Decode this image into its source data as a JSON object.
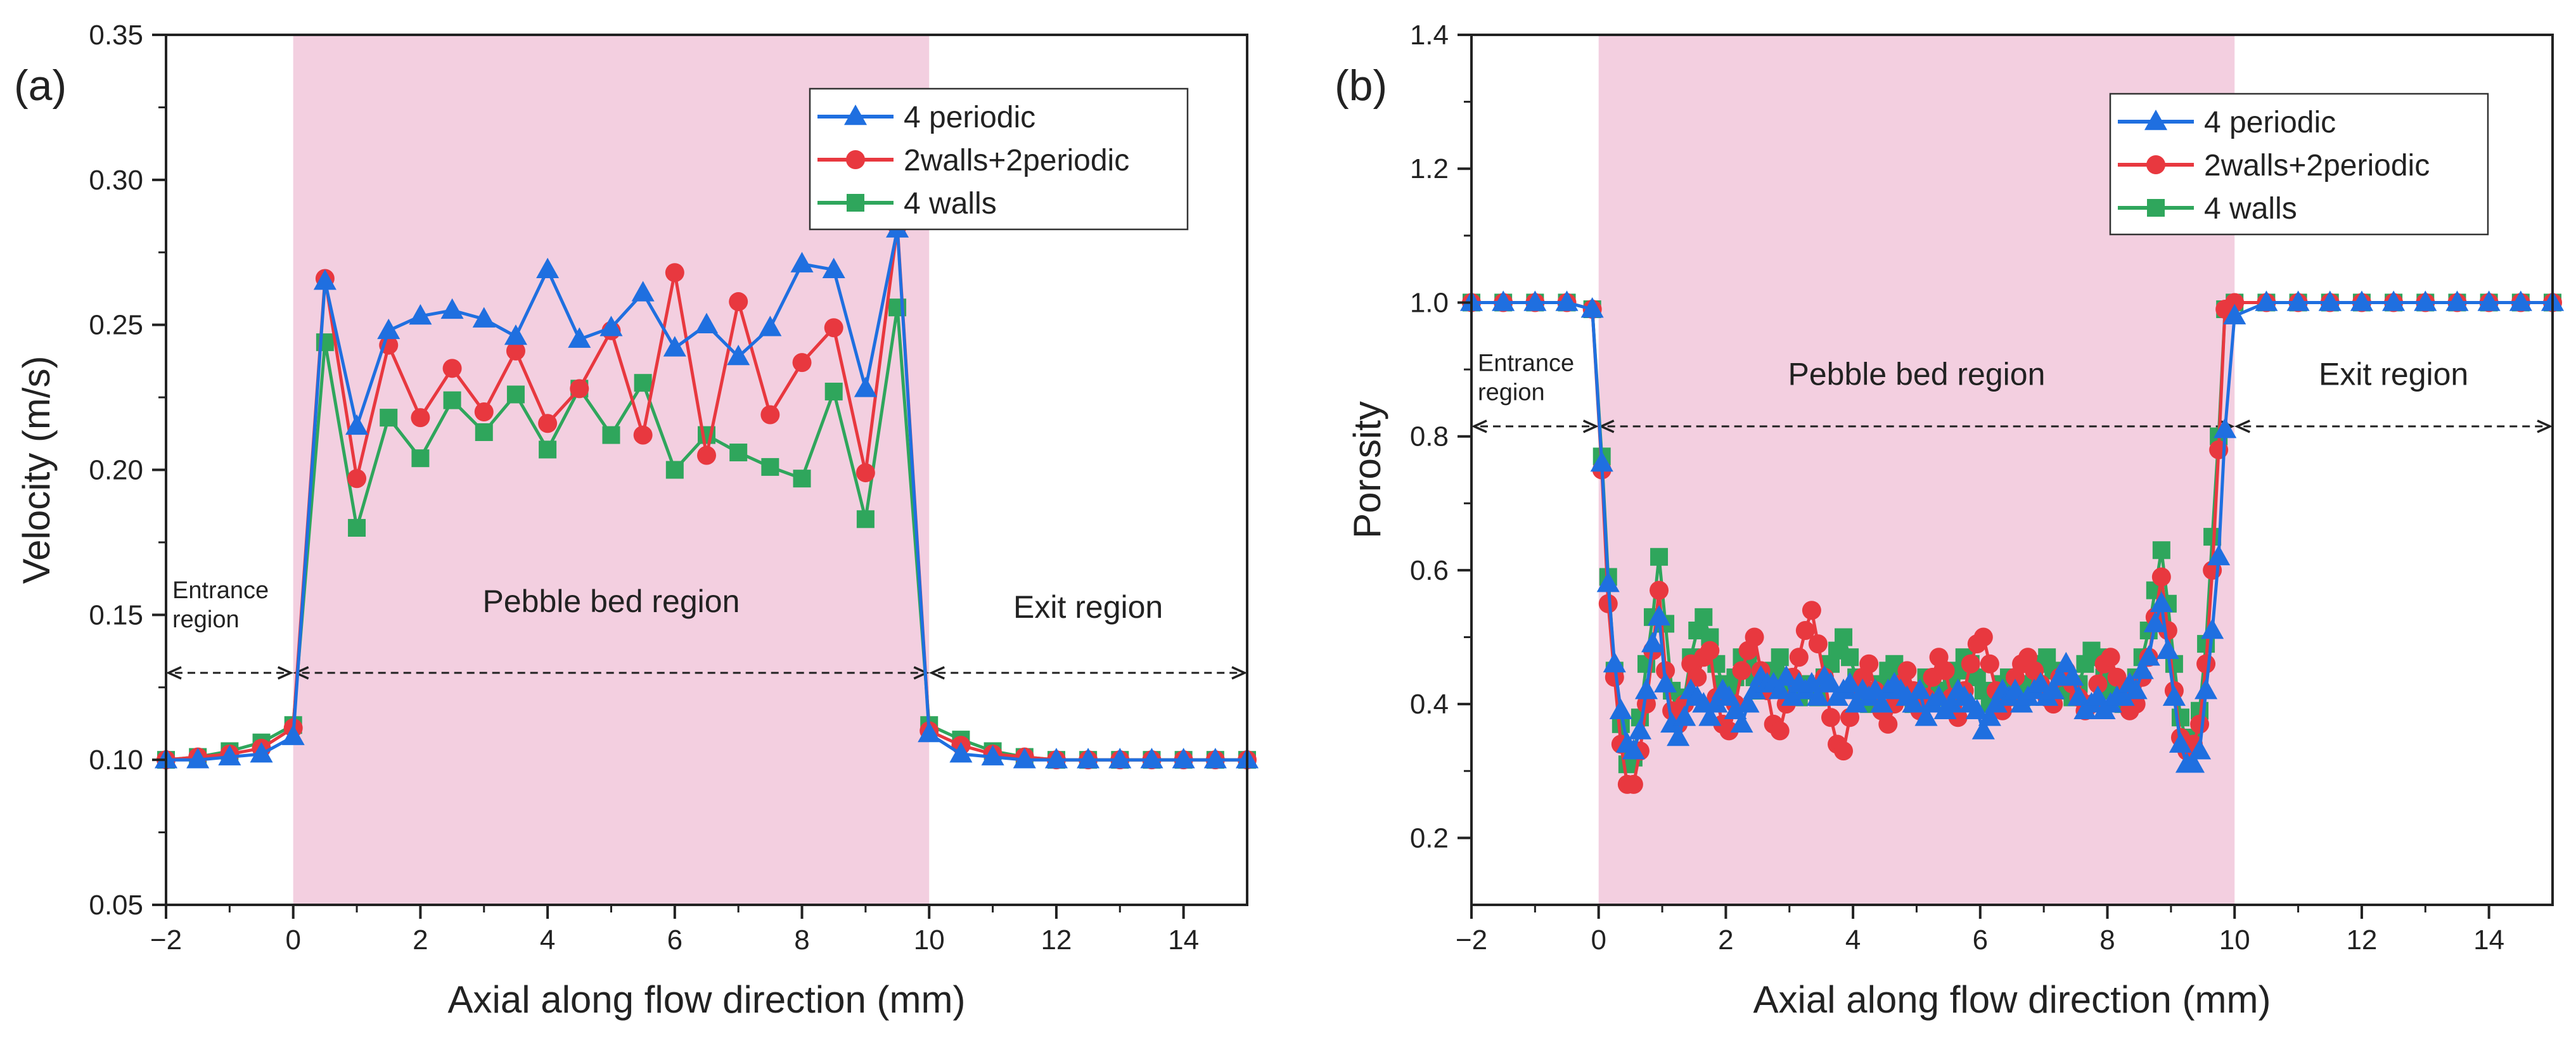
{
  "colors": {
    "shade": "#f3cfe0",
    "blue": "#1f6fe0",
    "red": "#e8383f",
    "green": "#2fa65c",
    "axis": "#222222"
  },
  "chart_data": [
    {
      "type": "line",
      "panel_label": "(a)",
      "xlabel": "Axial along flow direction (mm)",
      "ylabel": "Velocity (m/s)",
      "xlim": [
        -2,
        15
      ],
      "ylim": [
        0.05,
        0.35
      ],
      "xticks": [
        -2,
        0,
        2,
        4,
        6,
        8,
        10,
        12,
        14
      ],
      "xtick_labels": [
        "−2",
        "0",
        "2",
        "4",
        "6",
        "8",
        "10",
        "12",
        "14"
      ],
      "yticks": [
        0.05,
        0.1,
        0.15,
        0.2,
        0.25,
        0.3,
        0.35
      ],
      "ytick_labels": [
        "0.05",
        "0.10",
        "0.15",
        "0.20",
        "0.25",
        "0.30",
        "0.35"
      ],
      "shaded_region": [
        0,
        10
      ],
      "legend_position": "top-right",
      "regions": {
        "entrance": "Entrance\nregion",
        "pebble": "Pebble bed region",
        "exit": "Exit region",
        "arrow_y": 0.13,
        "entrance_label_y": 0.147,
        "pebble_label_y": 0.147,
        "exit_label_y": 0.145
      },
      "series": [
        {
          "name": "4 periodic",
          "color": "blue",
          "marker": "triangle",
          "x": [
            -2,
            -1.5,
            -1,
            -0.5,
            0,
            0.5,
            1,
            1.5,
            2,
            2.5,
            3,
            3.5,
            4,
            4.5,
            5,
            5.5,
            6,
            6.5,
            7,
            7.5,
            8,
            8.5,
            9,
            9.5,
            10,
            10.5,
            11,
            11.5,
            12,
            12.5,
            13,
            13.5,
            14,
            14.5,
            15
          ],
          "y": [
            0.1,
            0.1,
            0.101,
            0.102,
            0.108,
            0.265,
            0.215,
            0.248,
            0.253,
            0.255,
            0.252,
            0.246,
            0.269,
            0.245,
            0.249,
            0.261,
            0.242,
            0.25,
            0.239,
            0.249,
            0.271,
            0.269,
            0.228,
            0.283,
            0.109,
            0.102,
            0.101,
            0.1,
            0.1,
            0.1,
            0.1,
            0.1,
            0.1,
            0.1,
            0.1
          ]
        },
        {
          "name": "2walls+2periodic",
          "color": "red",
          "marker": "circle",
          "x": [
            -2,
            -1.5,
            -1,
            -0.5,
            0,
            0.5,
            1,
            1.5,
            2,
            2.5,
            3,
            3.5,
            4,
            4.5,
            5,
            5.5,
            6,
            6.5,
            7,
            7.5,
            8,
            8.5,
            9,
            9.5,
            10,
            10.5,
            11,
            11.5,
            12,
            12.5,
            13,
            13.5,
            14,
            14.5,
            15
          ],
          "y": [
            0.1,
            0.101,
            0.102,
            0.104,
            0.111,
            0.266,
            0.197,
            0.243,
            0.218,
            0.235,
            0.22,
            0.241,
            0.216,
            0.228,
            0.248,
            0.212,
            0.268,
            0.205,
            0.258,
            0.219,
            0.237,
            0.249,
            0.199,
            0.284,
            0.11,
            0.105,
            0.102,
            0.101,
            0.1,
            0.1,
            0.1,
            0.1,
            0.1,
            0.1,
            0.1
          ]
        },
        {
          "name": "4 walls",
          "color": "green",
          "marker": "square",
          "x": [
            -2,
            -1.5,
            -1,
            -0.5,
            0,
            0.5,
            1,
            1.5,
            2,
            2.5,
            3,
            3.5,
            4,
            4.5,
            5,
            5.5,
            6,
            6.5,
            7,
            7.5,
            8,
            8.5,
            9,
            9.5,
            10,
            10.5,
            11,
            11.5,
            12,
            12.5,
            13,
            13.5,
            14,
            14.5,
            15
          ],
          "y": [
            0.1,
            0.101,
            0.103,
            0.106,
            0.112,
            0.244,
            0.18,
            0.218,
            0.204,
            0.224,
            0.213,
            0.226,
            0.207,
            0.228,
            0.212,
            0.23,
            0.2,
            0.212,
            0.206,
            0.201,
            0.197,
            0.227,
            0.183,
            0.256,
            0.112,
            0.107,
            0.103,
            0.101,
            0.1,
            0.1,
            0.1,
            0.1,
            0.1,
            0.1,
            0.1
          ]
        }
      ]
    },
    {
      "type": "line",
      "panel_label": "(b)",
      "xlabel": "Axial along flow direction (mm)",
      "ylabel": "Porosity",
      "xlim": [
        -2,
        15
      ],
      "ylim": [
        0.1,
        1.4
      ],
      "xticks": [
        -2,
        0,
        2,
        4,
        6,
        8,
        10,
        12,
        14
      ],
      "xtick_labels": [
        "−2",
        "0",
        "2",
        "4",
        "6",
        "8",
        "10",
        "12",
        "14"
      ],
      "yticks": [
        0.2,
        0.4,
        0.6,
        0.8,
        1.0,
        1.2,
        1.4
      ],
      "ytick_labels": [
        "0.2",
        "0.4",
        "0.6",
        "0.8",
        "1.0",
        "1.2",
        "1.4"
      ],
      "shaded_region": [
        0,
        10
      ],
      "legend_position": "top-right",
      "regions": {
        "entrance": "Entrance\nregion",
        "pebble": "Pebble bed region",
        "exit": "Exit region",
        "arrow_y": 0.815,
        "entrance_label_y": 0.86,
        "pebble_label_y": 0.86,
        "exit_label_y": 0.86
      },
      "series": [
        {
          "name": "4 periodic",
          "color": "blue",
          "marker": "triangle",
          "x": [
            -2,
            -1.5,
            -1,
            -0.5,
            -0.1,
            0.05,
            0.15,
            0.25,
            0.35,
            0.45,
            0.55,
            0.65,
            0.75,
            0.85,
            0.95,
            1.05,
            1.15,
            1.25,
            1.35,
            1.45,
            1.55,
            1.65,
            1.75,
            1.85,
            1.95,
            2.05,
            2.15,
            2.25,
            2.35,
            2.45,
            2.55,
            2.65,
            2.75,
            2.85,
            2.95,
            3.05,
            3.15,
            3.25,
            3.35,
            3.45,
            3.55,
            3.65,
            3.75,
            3.85,
            3.95,
            4.05,
            4.15,
            4.25,
            4.35,
            4.45,
            4.55,
            4.65,
            4.75,
            4.85,
            4.95,
            5.05,
            5.15,
            5.25,
            5.35,
            5.45,
            5.55,
            5.65,
            5.75,
            5.85,
            5.95,
            6.05,
            6.15,
            6.25,
            6.35,
            6.45,
            6.55,
            6.65,
            6.75,
            6.85,
            6.95,
            7.05,
            7.15,
            7.25,
            7.35,
            7.45,
            7.55,
            7.65,
            7.75,
            7.85,
            7.95,
            8.05,
            8.15,
            8.25,
            8.35,
            8.45,
            8.55,
            8.65,
            8.75,
            8.85,
            8.95,
            9.05,
            9.15,
            9.25,
            9.35,
            9.45,
            9.55,
            9.65,
            9.75,
            9.85,
            10.0,
            10.5,
            11,
            11.5,
            12,
            12.5,
            13,
            13.5,
            14,
            14.5,
            15
          ],
          "y": [
            1.0,
            1.0,
            1.0,
            1.0,
            0.99,
            0.76,
            0.58,
            0.46,
            0.39,
            0.34,
            0.33,
            0.36,
            0.42,
            0.49,
            0.53,
            0.43,
            0.37,
            0.35,
            0.38,
            0.42,
            0.41,
            0.4,
            0.38,
            0.4,
            0.42,
            0.41,
            0.39,
            0.37,
            0.4,
            0.42,
            0.44,
            0.43,
            0.43,
            0.42,
            0.44,
            0.41,
            0.43,
            0.42,
            0.43,
            0.41,
            0.44,
            0.43,
            0.41,
            0.42,
            0.43,
            0.4,
            0.42,
            0.41,
            0.42,
            0.4,
            0.42,
            0.43,
            0.42,
            0.41,
            0.4,
            0.42,
            0.38,
            0.4,
            0.41,
            0.39,
            0.4,
            0.42,
            0.41,
            0.4,
            0.39,
            0.36,
            0.38,
            0.4,
            0.42,
            0.41,
            0.42,
            0.4,
            0.41,
            0.42,
            0.43,
            0.41,
            0.42,
            0.44,
            0.46,
            0.44,
            0.41,
            0.39,
            0.4,
            0.41,
            0.39,
            0.4,
            0.41,
            0.41,
            0.43,
            0.42,
            0.45,
            0.47,
            0.52,
            0.55,
            0.48,
            0.41,
            0.34,
            0.31,
            0.31,
            0.33,
            0.42,
            0.51,
            0.62,
            0.81,
            0.98,
            1.0,
            1.0,
            1.0,
            1.0,
            1.0,
            1.0,
            1.0,
            1.0,
            1.0,
            1.0
          ]
        },
        {
          "name": "2walls+2periodic",
          "color": "red",
          "marker": "circle",
          "x": [
            -2,
            -1.5,
            -1,
            -0.5,
            -0.1,
            0.05,
            0.15,
            0.25,
            0.35,
            0.45,
            0.55,
            0.65,
            0.75,
            0.85,
            0.95,
            1.05,
            1.15,
            1.25,
            1.35,
            1.45,
            1.55,
            1.65,
            1.75,
            1.85,
            1.95,
            2.05,
            2.15,
            2.25,
            2.35,
            2.45,
            2.55,
            2.65,
            2.75,
            2.85,
            2.95,
            3.05,
            3.15,
            3.25,
            3.35,
            3.45,
            3.55,
            3.65,
            3.75,
            3.85,
            3.95,
            4.05,
            4.15,
            4.25,
            4.35,
            4.45,
            4.55,
            4.65,
            4.75,
            4.85,
            4.95,
            5.05,
            5.15,
            5.25,
            5.35,
            5.45,
            5.55,
            5.65,
            5.75,
            5.85,
            5.95,
            6.05,
            6.15,
            6.25,
            6.35,
            6.45,
            6.55,
            6.65,
            6.75,
            6.85,
            6.95,
            7.05,
            7.15,
            7.25,
            7.35,
            7.45,
            7.55,
            7.65,
            7.75,
            7.85,
            7.95,
            8.05,
            8.15,
            8.25,
            8.35,
            8.45,
            8.55,
            8.65,
            8.75,
            8.85,
            8.95,
            9.05,
            9.15,
            9.25,
            9.35,
            9.45,
            9.55,
            9.65,
            9.75,
            9.85,
            10.0,
            10.5,
            11,
            11.5,
            12,
            12.5,
            13,
            13.5,
            14,
            14.5,
            15
          ],
          "y": [
            1.0,
            1.0,
            1.0,
            1.0,
            0.99,
            0.75,
            0.55,
            0.44,
            0.34,
            0.28,
            0.28,
            0.33,
            0.4,
            0.48,
            0.57,
            0.45,
            0.39,
            0.37,
            0.4,
            0.46,
            0.44,
            0.47,
            0.48,
            0.41,
            0.37,
            0.36,
            0.4,
            0.45,
            0.48,
            0.5,
            0.45,
            0.42,
            0.37,
            0.36,
            0.4,
            0.44,
            0.47,
            0.51,
            0.54,
            0.49,
            0.44,
            0.38,
            0.34,
            0.33,
            0.38,
            0.42,
            0.44,
            0.46,
            0.42,
            0.39,
            0.37,
            0.4,
            0.43,
            0.45,
            0.42,
            0.39,
            0.41,
            0.44,
            0.47,
            0.45,
            0.41,
            0.38,
            0.42,
            0.46,
            0.49,
            0.5,
            0.46,
            0.42,
            0.39,
            0.41,
            0.44,
            0.46,
            0.47,
            0.45,
            0.43,
            0.41,
            0.4,
            0.44,
            0.45,
            0.43,
            0.41,
            0.39,
            0.4,
            0.43,
            0.46,
            0.47,
            0.44,
            0.41,
            0.39,
            0.4,
            0.44,
            0.47,
            0.53,
            0.59,
            0.51,
            0.42,
            0.35,
            0.33,
            0.34,
            0.37,
            0.46,
            0.6,
            0.78,
            0.99,
            1.0,
            1.0,
            1.0,
            1.0,
            1.0,
            1.0,
            1.0,
            1.0,
            1.0,
            1.0,
            1.0
          ]
        },
        {
          "name": "4 walls",
          "color": "green",
          "marker": "square",
          "x": [
            -2,
            -1.5,
            -1,
            -0.5,
            -0.1,
            0.05,
            0.15,
            0.25,
            0.35,
            0.45,
            0.55,
            0.65,
            0.75,
            0.85,
            0.95,
            1.05,
            1.15,
            1.25,
            1.35,
            1.45,
            1.55,
            1.65,
            1.75,
            1.85,
            1.95,
            2.05,
            2.15,
            2.25,
            2.35,
            2.45,
            2.55,
            2.65,
            2.75,
            2.85,
            2.95,
            3.05,
            3.15,
            3.25,
            3.35,
            3.45,
            3.55,
            3.65,
            3.75,
            3.85,
            3.95,
            4.05,
            4.15,
            4.25,
            4.35,
            4.45,
            4.55,
            4.65,
            4.75,
            4.85,
            4.95,
            5.05,
            5.15,
            5.25,
            5.35,
            5.45,
            5.55,
            5.65,
            5.75,
            5.85,
            5.95,
            6.05,
            6.15,
            6.25,
            6.35,
            6.45,
            6.55,
            6.65,
            6.75,
            6.85,
            6.95,
            7.05,
            7.15,
            7.25,
            7.35,
            7.45,
            7.55,
            7.65,
            7.75,
            7.85,
            7.95,
            8.05,
            8.15,
            8.25,
            8.35,
            8.45,
            8.55,
            8.65,
            8.75,
            8.85,
            8.95,
            9.05,
            9.15,
            9.25,
            9.35,
            9.45,
            9.55,
            9.65,
            9.75,
            9.85,
            10.0,
            10.5,
            11,
            11.5,
            12,
            12.5,
            13,
            13.5,
            14,
            14.5,
            15
          ],
          "y": [
            1.0,
            1.0,
            1.0,
            1.0,
            0.99,
            0.77,
            0.59,
            0.45,
            0.37,
            0.31,
            0.32,
            0.38,
            0.46,
            0.53,
            0.62,
            0.52,
            0.42,
            0.38,
            0.41,
            0.47,
            0.51,
            0.53,
            0.5,
            0.46,
            0.43,
            0.42,
            0.44,
            0.47,
            0.46,
            0.44,
            0.42,
            0.43,
            0.45,
            0.47,
            0.44,
            0.42,
            0.41,
            0.43,
            0.42,
            0.41,
            0.44,
            0.46,
            0.48,
            0.5,
            0.47,
            0.44,
            0.42,
            0.4,
            0.41,
            0.43,
            0.45,
            0.46,
            0.44,
            0.42,
            0.4,
            0.42,
            0.44,
            0.43,
            0.42,
            0.41,
            0.43,
            0.45,
            0.47,
            0.46,
            0.44,
            0.42,
            0.4,
            0.41,
            0.43,
            0.44,
            0.42,
            0.41,
            0.43,
            0.45,
            0.46,
            0.47,
            0.45,
            0.43,
            0.42,
            0.41,
            0.43,
            0.46,
            0.48,
            0.47,
            0.44,
            0.42,
            0.41,
            0.4,
            0.42,
            0.44,
            0.47,
            0.51,
            0.57,
            0.63,
            0.55,
            0.46,
            0.38,
            0.34,
            0.35,
            0.39,
            0.49,
            0.65,
            0.8,
            0.99,
            1.0,
            1.0,
            1.0,
            1.0,
            1.0,
            1.0,
            1.0,
            1.0,
            1.0,
            1.0,
            1.0
          ]
        }
      ]
    }
  ]
}
